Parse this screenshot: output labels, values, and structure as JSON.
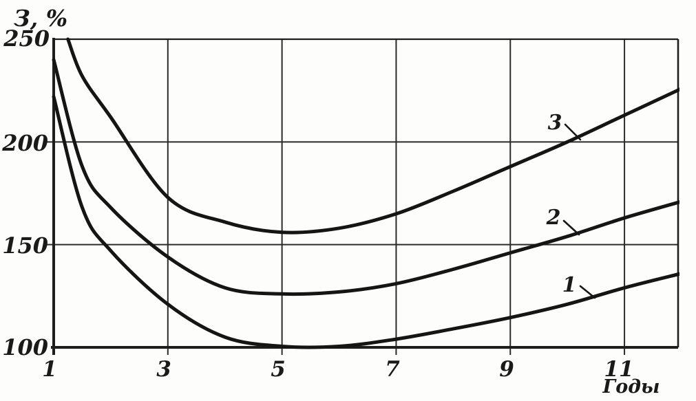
{
  "figure": {
    "y_axis_title": "З, %",
    "x_axis_title": "Годы",
    "y_tick_labels": [
      "250",
      "200",
      "150",
      "100"
    ],
    "x_tick_labels": [
      "1",
      "3",
      "5",
      "7",
      "9",
      "11"
    ]
  },
  "chart_data": {
    "type": "line",
    "title": "",
    "ylabel": "З, %",
    "xlabel": "Годы",
    "xlim": [
      1,
      11.94
    ],
    "ylim": [
      100,
      250
    ],
    "xticks": [
      1,
      3,
      5,
      7,
      9,
      11
    ],
    "yticks": [
      100,
      150,
      200,
      250
    ],
    "grid": true,
    "legend_position": "none",
    "style": "scanned black-ink engineering plot, thick smooth curves, thin grid",
    "series": [
      {
        "name": "1",
        "x": [
          1,
          1.5,
          2,
          3,
          4,
          5,
          6,
          7,
          8,
          9,
          10,
          11,
          12
        ],
        "y": [
          222,
          168,
          147,
          121,
          105,
          100.5,
          100.5,
          104,
          109,
          114.5,
          121,
          129,
          136
        ]
      },
      {
        "name": "2",
        "x": [
          1,
          1.5,
          2,
          3,
          4,
          5,
          6,
          7,
          8,
          9,
          10,
          11,
          12
        ],
        "y": [
          240,
          188,
          168,
          144,
          129,
          126,
          127,
          131,
          138,
          146,
          154,
          163,
          171
        ]
      },
      {
        "name": "3",
        "x": [
          1.25,
          1.5,
          2,
          3,
          4,
          5,
          6,
          7,
          8,
          9,
          10,
          11,
          12
        ],
        "y": [
          250,
          232,
          212,
          173,
          161,
          156,
          158,
          165,
          176,
          188,
          200,
          213,
          226
        ]
      }
    ],
    "curve_labels": [
      {
        "text": "1"
      },
      {
        "text": "2"
      },
      {
        "text": "3"
      }
    ]
  },
  "colors": {
    "ink": "#151515",
    "grid": "#2b2b2b",
    "paper": "#fdfdfb"
  }
}
